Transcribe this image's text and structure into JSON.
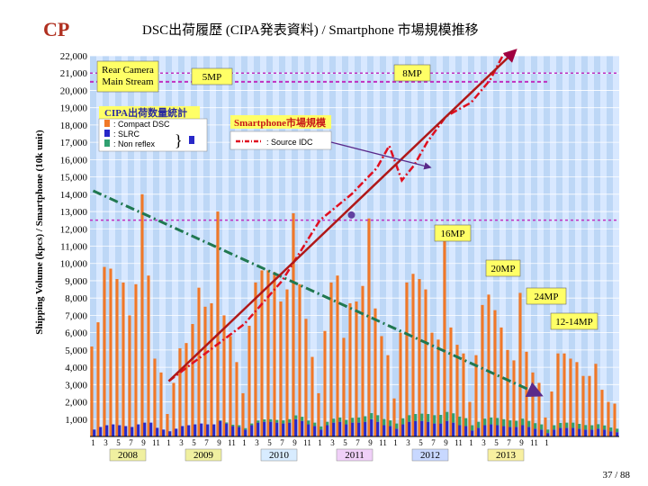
{
  "logo": "CP",
  "title": "DSC出荷履歴 (CIPA発表資料) / Smartphone 市場規模推移",
  "page_number": "37 / 88",
  "colors": {
    "compact": "#f07828",
    "slr": "#2828c8",
    "nonreflex": "#30a070",
    "smartphone": "#e01020",
    "mp_line": "#c030c0",
    "trend": "#207850",
    "plot_bg": "#d8e8ff",
    "band": "#a8c8ee",
    "arrow": "#a00040"
  },
  "legend": {
    "title": "CIPA出荷数量統計",
    "compact": ": Compact DSC",
    "slr": ": SLRC",
    "nonreflex": ": Non reflex",
    "smartphone_title": "Smartphone市場規模",
    "smartphone_source": ": Source IDC",
    "rear_camera": "Rear Camera\nMain Stream"
  },
  "annotations": {
    "mp5": "5MP",
    "mp8": "8MP",
    "mp16": "16MP",
    "mp20": "20MP",
    "mp24": "24MP",
    "mp12_14": "12-14MP"
  },
  "chart_data": {
    "type": "bar",
    "ylabel": "Shipping Volume (kpcs) / Smartphone (10k unit)",
    "yticks": [
      "1,000",
      "2,000",
      "3,000",
      "4,000",
      "5,000",
      "6,000",
      "7,000",
      "8,000",
      "9,000",
      "10,000",
      "11,000",
      "12,000",
      "13,000",
      "14,000",
      "15,000",
      "16,000",
      "17,000",
      "18,000",
      "19,000",
      "20,000",
      "21,000",
      "22,000"
    ],
    "ylim": [
      0,
      22000
    ],
    "years": [
      "2008",
      "2009",
      "2010",
      "2011",
      "2012",
      "2013"
    ],
    "month_ticks": [
      "1",
      "3",
      "5",
      "7",
      "9",
      "11",
      "1",
      "3",
      "5",
      "7",
      "9",
      "11",
      "1",
      "3",
      "5",
      "7",
      "9",
      "11",
      "1",
      "3",
      "5",
      "7",
      "9",
      "11",
      "1",
      "3",
      "5",
      "7",
      "9",
      "11",
      "1",
      "3",
      "5",
      "7",
      "9",
      "11",
      "1"
    ],
    "compact": [
      5200,
      6600,
      9800,
      9700,
      9100,
      8900,
      7000,
      8800,
      14000,
      9300,
      4500,
      3700,
      1300,
      3100,
      5100,
      5400,
      6500,
      8600,
      7500,
      7700,
      13000,
      7000,
      5800,
      4300,
      2500,
      6400,
      8900,
      9600,
      9600,
      9500,
      7800,
      8500,
      12900,
      8800,
      6800,
      4600,
      2500,
      6100,
      8900,
      9300,
      5700,
      7700,
      7800,
      8700,
      12600,
      7400,
      5800,
      4700,
      2200,
      6000,
      8900,
      9400,
      9100,
      8500,
      6000,
      5600,
      11500,
      6300,
      5300,
      4800,
      2000,
      4700,
      7600,
      8200,
      7300,
      6300,
      5000,
      4400,
      8300,
      4900,
      3700,
      3100,
      1100,
      2600,
      4800,
      4800,
      4500,
      4300,
      3500,
      3500,
      4200,
      2700,
      2000,
      1900
    ],
    "slr": [
      400,
      550,
      650,
      700,
      650,
      600,
      550,
      700,
      800,
      800,
      500,
      400,
      300,
      450,
      600,
      650,
      700,
      750,
      700,
      700,
      900,
      750,
      600,
      550,
      400,
      650,
      800,
      850,
      850,
      800,
      750,
      800,
      1000,
      900,
      700,
      600,
      400,
      650,
      800,
      850,
      700,
      800,
      800,
      850,
      1000,
      850,
      650,
      600,
      450,
      700,
      850,
      900,
      900,
      850,
      750,
      750,
      900,
      800,
      650,
      600,
      350,
      500,
      650,
      700,
      650,
      600,
      550,
      550,
      650,
      550,
      450,
      400,
      200,
      400,
      500,
      500,
      500,
      450,
      400,
      400,
      450,
      400,
      300,
      250
    ],
    "nonreflex": [
      0,
      0,
      0,
      0,
      0,
      0,
      0,
      0,
      0,
      0,
      0,
      0,
      0,
      0,
      0,
      0,
      0,
      0,
      0,
      0,
      30,
      60,
      80,
      100,
      80,
      100,
      120,
      140,
      150,
      160,
      180,
      200,
      220,
      240,
      220,
      200,
      180,
      200,
      230,
      250,
      260,
      280,
      300,
      320,
      350,
      380,
      360,
      330,
      300,
      350,
      380,
      400,
      420,
      450,
      480,
      500,
      520,
      540,
      500,
      460,
      300,
      350,
      380,
      400,
      420,
      400,
      380,
      360,
      380,
      350,
      320,
      300,
      200,
      250,
      280,
      300,
      300,
      280,
      260,
      250,
      260,
      240,
      220,
      200
    ],
    "smartphone": [
      {
        "x": "2009-01",
        "y": 3200
      },
      {
        "x": "2010-01",
        "y": 6500
      },
      {
        "x": "2010-07",
        "y": 9000
      },
      {
        "x": "2011-01",
        "y": 12500
      },
      {
        "x": "2011-06",
        "y": 14000
      },
      {
        "x": "2011-10",
        "y": 15500
      },
      {
        "x": "2011-12",
        "y": 16800
      },
      {
        "x": "2012-02",
        "y": 14800
      },
      {
        "x": "2012-04",
        "y": 15700
      },
      {
        "x": "2012-06",
        "y": 17000
      },
      {
        "x": "2012-09",
        "y": 18500
      },
      {
        "x": "2013-01",
        "y": 19300
      },
      {
        "x": "2013-04",
        "y": 20600
      },
      {
        "x": "2013-06",
        "y": 22000
      },
      {
        "x": "2013-08",
        "y": 22300
      }
    ],
    "trend": [
      {
        "x": "2008-01",
        "y": 14200
      },
      {
        "x": "2013-12",
        "y": 2400
      }
    ],
    "mp_line": {
      "y": 20500
    },
    "dashed_levels": [
      21000,
      12500
    ]
  }
}
